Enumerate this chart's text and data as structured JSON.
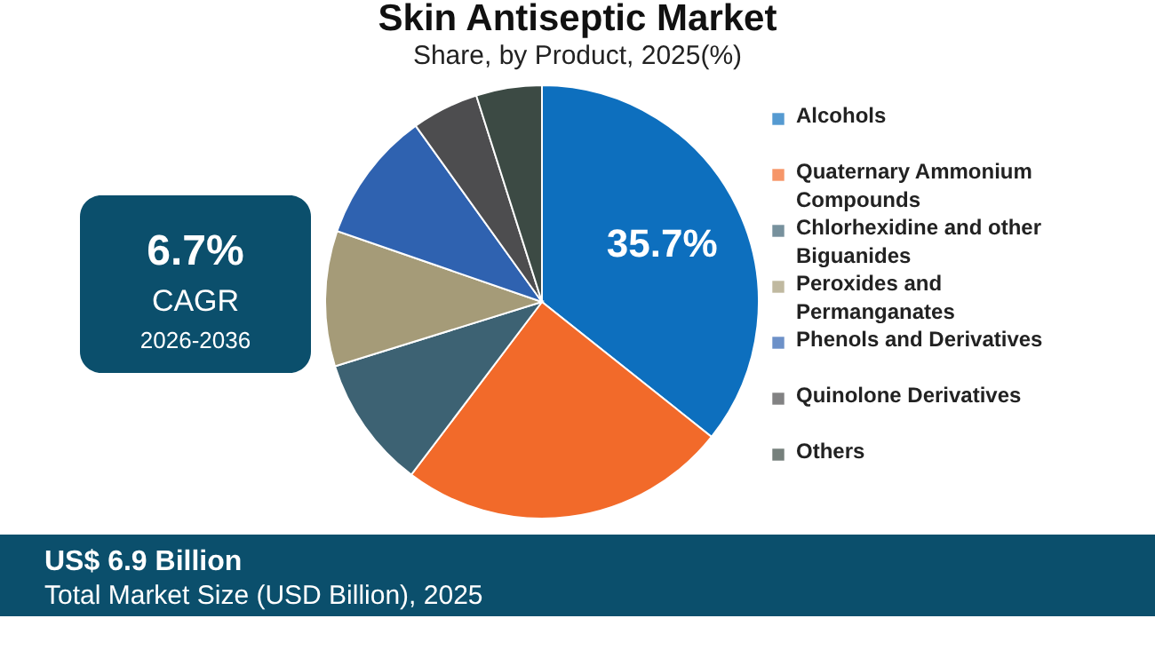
{
  "chart_data": {
    "type": "pie",
    "title": "Skin Antiseptic Market",
    "subtitle": "Share, by Product, 2025(%)",
    "categories": [
      "Alcohols",
      "Quaternary Ammonium Compounds",
      "Chlorhexidine and other Biguanides",
      "Peroxides and Permanganates",
      "Phenols and Derivatives",
      "Quinolone Derivatives",
      "Others"
    ],
    "values": [
      35.7,
      24.6,
      9.9,
      10.1,
      9.8,
      5.0,
      4.9
    ],
    "colors": [
      "#0d6fbe",
      "#f26a2a",
      "#3d6273",
      "#a59b78",
      "#2f62b0",
      "#4d4d4f",
      "#3c4a44"
    ],
    "value_labels": [
      "35.7%",
      null,
      null,
      null,
      null,
      null,
      null
    ],
    "legend": "right",
    "annotations": [
      "6.7%",
      "CAGR",
      "2026-2036",
      "US$ 6.9 Billion",
      "Total Market Size (USD Billion), 2025"
    ]
  }
}
